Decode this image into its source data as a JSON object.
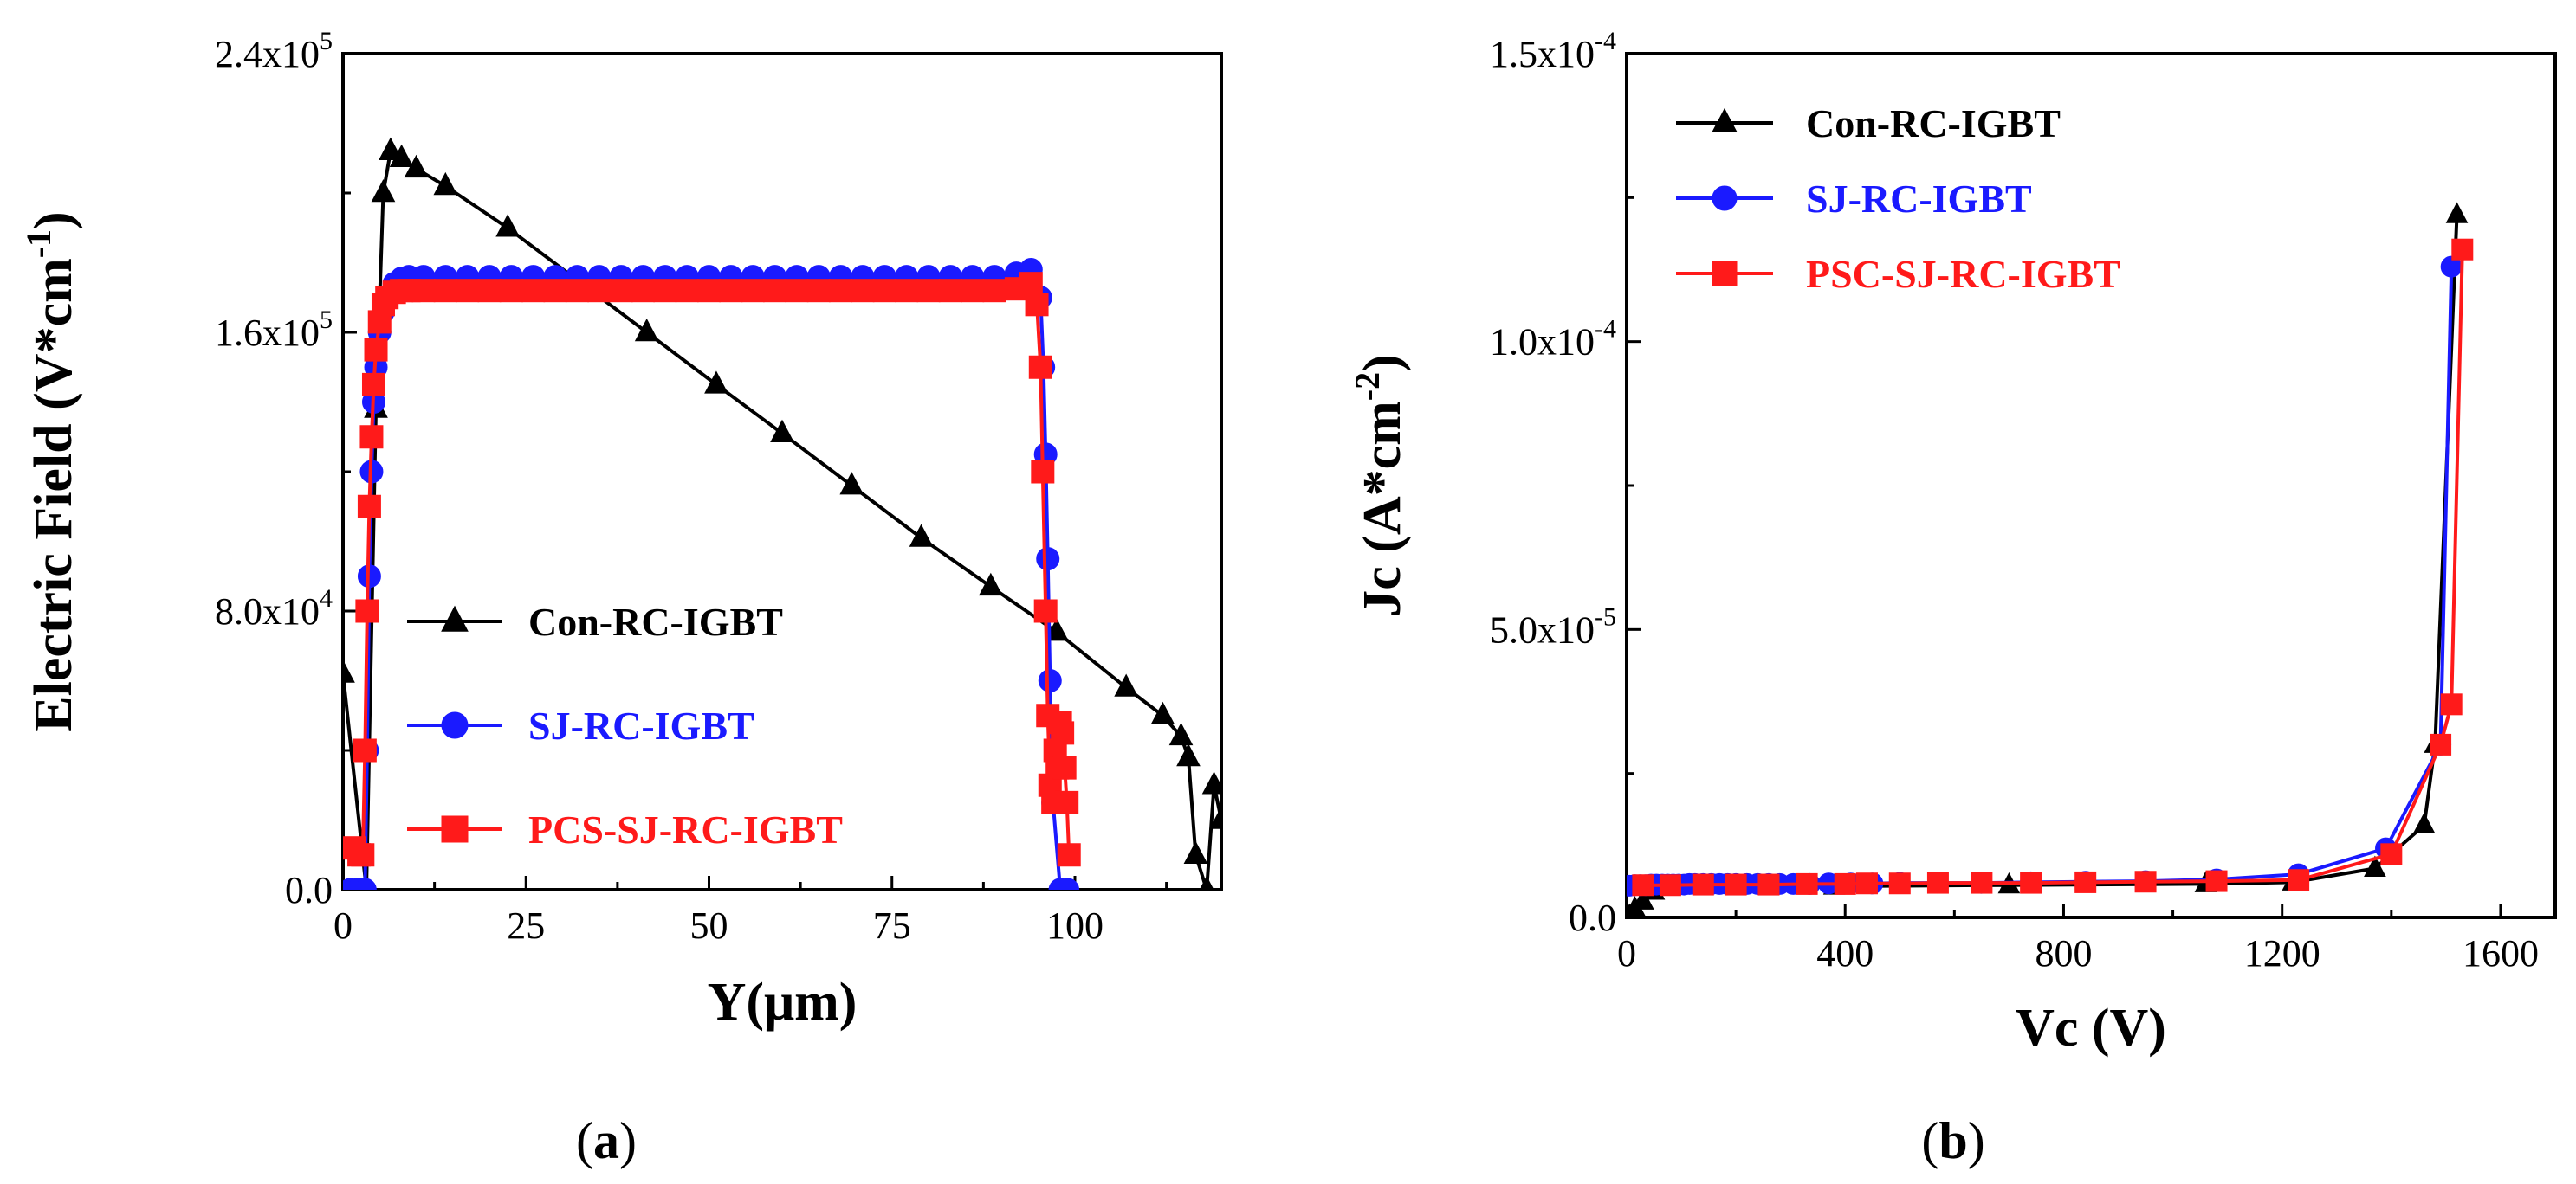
{
  "chart_data": [
    {
      "type": "line",
      "panel_label": "a",
      "xlabel": "Y(μm)",
      "ylabel_main": "Electric Field (V*cm",
      "ylabel_sup": "-1",
      "ylabel_close": ")",
      "xlim": [
        0,
        120
      ],
      "ylim": [
        0,
        240000
      ],
      "x_ticks": [
        0,
        25,
        50,
        75,
        100
      ],
      "x_tick_labels": [
        "0",
        "25",
        "50",
        "75",
        "100"
      ],
      "y_ticks": [
        0,
        80000,
        160000,
        240000
      ],
      "y_tick_labels": [
        {
          "base": "0.0",
          "exp": ""
        },
        {
          "base": "8.0x10",
          "exp": "4"
        },
        {
          "base": "1.6x10",
          "exp": "5"
        },
        {
          "base": "2.4x10",
          "exp": "5"
        }
      ],
      "legend_position": "bottom-center",
      "series": [
        {
          "name": "Con-RC-IGBT",
          "color": "#000000",
          "marker": "triangle",
          "x": [
            0,
            3.2,
            4.5,
            5.5,
            6.5,
            8,
            10,
            14,
            22.5,
            41.5,
            51,
            60,
            69.5,
            79,
            88.5,
            97.5,
            107,
            112,
            114.5,
            115.5,
            116.5,
            118,
            119,
            120
          ],
          "y": [
            62000,
            0,
            138000,
            200000,
            212000,
            210000,
            207000,
            202000,
            190000,
            160000,
            145000,
            131000,
            116000,
            101000,
            87000,
            74000,
            58000,
            50000,
            44000,
            38000,
            10000,
            0,
            30000,
            20000
          ]
        },
        {
          "name": "SJ-RC-IGBT",
          "color": "#1a1aff",
          "marker": "circle",
          "x": [
            1,
            2,
            2.5,
            3,
            3.3,
            3.6,
            3.9,
            4.2,
            4.5,
            5,
            5.5,
            6,
            7,
            8,
            9,
            11,
            14,
            17,
            20,
            23,
            26,
            29,
            32,
            35,
            38,
            41,
            44,
            47,
            50,
            53,
            56,
            59,
            62,
            65,
            68,
            71,
            74,
            77,
            80,
            83,
            86,
            89,
            92,
            94,
            95.3,
            95.7,
            96,
            96.3,
            96.6,
            97,
            98,
            99
          ],
          "y": [
            0,
            0,
            0,
            0,
            40000,
            90000,
            120000,
            140000,
            150000,
            160000,
            166000,
            170000,
            174000,
            175500,
            176000,
            176000,
            176000,
            176000,
            176000,
            176000,
            176000,
            176000,
            176000,
            176000,
            176000,
            176000,
            176000,
            176000,
            176000,
            176000,
            176000,
            176000,
            176000,
            176000,
            176000,
            176000,
            176000,
            176000,
            176000,
            176000,
            176000,
            176000,
            177000,
            178000,
            170000,
            150000,
            125000,
            95000,
            60000,
            25000,
            0,
            0
          ]
        },
        {
          "name": "PCS-SJ-RC-IGBT",
          "color": "#ff1a1a",
          "marker": "square",
          "x": [
            1.5,
            2.2,
            2.7,
            3,
            3.3,
            3.6,
            3.9,
            4.2,
            4.5,
            5,
            5.5,
            6,
            7,
            8,
            9,
            11,
            14,
            17,
            20,
            23,
            26,
            29,
            32,
            35,
            38,
            41,
            44,
            47,
            50,
            53,
            56,
            59,
            62,
            65,
            68,
            71,
            74,
            77,
            80,
            83,
            86,
            89,
            92,
            94,
            94.8,
            95.3,
            95.6,
            96,
            96.3,
            96.6,
            97,
            97.3,
            97.6,
            98,
            98.3,
            98.6,
            98.9,
            99.2
          ],
          "y": [
            12000,
            10000,
            10000,
            40000,
            80000,
            110000,
            130000,
            145000,
            155000,
            163000,
            168000,
            170000,
            171500,
            172000,
            172000,
            172000,
            172000,
            172000,
            172000,
            172000,
            172000,
            172000,
            172000,
            172000,
            172000,
            172000,
            172000,
            172000,
            172000,
            172000,
            172000,
            172000,
            172000,
            172000,
            172000,
            172000,
            172000,
            172000,
            172000,
            172000,
            172000,
            172000,
            172500,
            174000,
            168000,
            150000,
            120000,
            80000,
            50000,
            30000,
            25000,
            40000,
            35000,
            48000,
            45000,
            35000,
            25000,
            10000
          ]
        }
      ]
    },
    {
      "type": "line",
      "panel_label": "b",
      "xlabel": "Vc (V)",
      "ylabel_main": "Jc (A*cm",
      "ylabel_sup": "-2",
      "ylabel_close": ")",
      "xlim": [
        0,
        1700
      ],
      "ylim": [
        0,
        0.00015
      ],
      "x_ticks": [
        0,
        400,
        800,
        1200,
        1600
      ],
      "x_tick_labels": [
        "0",
        "400",
        "800",
        "1200",
        "1600"
      ],
      "y_ticks": [
        0,
        5e-05,
        0.0001,
        0.00015
      ],
      "y_tick_labels": [
        {
          "base": "0.0",
          "exp": ""
        },
        {
          "base": "5.0x10",
          "exp": "-5"
        },
        {
          "base": "1.0x10",
          "exp": "-4"
        },
        {
          "base": "1.5x10",
          "exp": "-4"
        }
      ],
      "legend_position": "top-left",
      "series": [
        {
          "name": "Con-RC-IGBT",
          "color": "#000000",
          "marker": "triangle",
          "x": [
            5,
            15,
            30,
            50,
            380,
            700,
            1060,
            1220,
            1370,
            1460,
            1480,
            1520
          ],
          "y": [
            2e-07,
            1.5e-06,
            2.8e-06,
            4.5e-06,
            5.4e-06,
            5.6e-06,
            5.8e-06,
            6.1e-06,
            8.5e-06,
            1.6e-05,
            3e-05,
            0.000122
          ]
        },
        {
          "name": "SJ-RC-IGBT",
          "color": "#1a1aff",
          "marker": "circle",
          "x": [
            5,
            15,
            25,
            35,
            45,
            55,
            65,
            75,
            85,
            95,
            105,
            115,
            125,
            140,
            155,
            170,
            185,
            200,
            220,
            240,
            260,
            280,
            305,
            335,
            370,
            410,
            450,
            500,
            570,
            650,
            740,
            840,
            950,
            1080,
            1230,
            1390,
            1490,
            1510
          ],
          "y": [
            5.5e-06,
            5.6e-06,
            5.6e-06,
            5.6e-06,
            5.7e-06,
            5.7e-06,
            5.7e-06,
            5.7e-06,
            5.7e-06,
            5.7e-06,
            5.7e-06,
            5.8e-06,
            5.8e-06,
            5.8e-06,
            5.8e-06,
            5.8e-06,
            5.8e-06,
            5.8e-06,
            5.8e-06,
            5.8e-06,
            5.8e-06,
            5.8e-06,
            5.8e-06,
            5.8e-06,
            5.9e-06,
            5.9e-06,
            5.9e-06,
            6e-06,
            6e-06,
            6e-06,
            6.1e-06,
            6.2e-06,
            6.3e-06,
            6.6e-06,
            7.5e-06,
            1.2e-05,
            3e-05,
            0.000113
          ]
        },
        {
          "name": "PSC-SJ-RC-IGBT",
          "color": "#ff1a1a",
          "marker": "square",
          "x": [
            30,
            80,
            140,
            200,
            260,
            330,
            400,
            440,
            500,
            570,
            650,
            740,
            840,
            950,
            1080,
            1230,
            1400,
            1490,
            1510,
            1530
          ],
          "y": [
            5.6e-06,
            5.6e-06,
            5.7e-06,
            5.7e-06,
            5.7e-06,
            5.8e-06,
            5.8e-06,
            5.9e-06,
            5.9e-06,
            6e-06,
            6e-06,
            6e-06,
            6.1e-06,
            6.2e-06,
            6.3e-06,
            6.5e-06,
            1.1e-05,
            3e-05,
            3.7e-05,
            0.000116
          ]
        }
      ]
    }
  ]
}
